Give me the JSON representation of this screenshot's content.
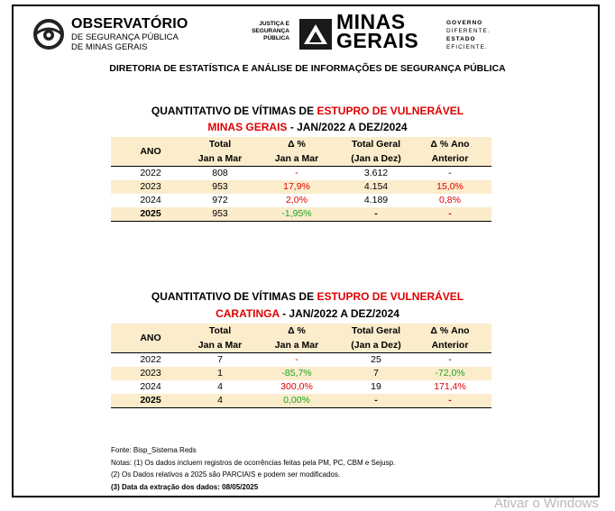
{
  "header": {
    "obs_title": "OBSERVATÓRIO",
    "obs_sub1": "DE SEGURANÇA PÚBLICA",
    "obs_sub2": "DE MINAS GERAIS",
    "just_line1": "JUSTIÇA E",
    "just_line2": "SEGURANÇA",
    "just_line3": "PÚBLICA",
    "mg_line1": "MINAS",
    "mg_line2": "GERAIS",
    "gov_line1": "GOVERNO",
    "gov_line2": "DIFERENTE.",
    "gov_line3": "ESTADO",
    "gov_line4": "EFICIENTE."
  },
  "directorate": "DIRETORIA DE ESTATÍSTICA E ANÁLISE DE INFORMAÇÕES DE SEGURANÇA PÚBLICA",
  "columns": {
    "ano": "ANO",
    "total_l1": "Total",
    "total_l2": "Jan a Mar",
    "delta_l1": "Δ %",
    "delta_l2": "Jan a Mar",
    "tg_l1": "Total Geral",
    "tg_l2": "(Jan a Dez)",
    "da_l1": "Δ % Ano",
    "da_l2": "Anterior"
  },
  "table1": {
    "title_prefix": "QUANTITATIVO DE VÍTIMAS DE ",
    "title_crime": "ESTUPRO DE VULNERÁVEL",
    "subtitle_place": "MINAS GERAIS",
    "subtitle_period": " - JAN/2022 A DEZ/2024",
    "rows": [
      {
        "ano": "2022",
        "total": "808",
        "delta": "-",
        "total_geral": "3.612",
        "delta_ano": "-"
      },
      {
        "ano": "2023",
        "total": "953",
        "delta": "17,9%",
        "total_geral": "4.154",
        "delta_ano": "15,0%"
      },
      {
        "ano": "2024",
        "total": "972",
        "delta": "2,0%",
        "total_geral": "4.189",
        "delta_ano": "0,8%"
      },
      {
        "ano": "2025",
        "total": "953",
        "delta": "-1,95%",
        "total_geral": "-",
        "delta_ano": "-"
      }
    ]
  },
  "table2": {
    "title_prefix": "QUANTITATIVO DE VÍTIMAS DE ",
    "title_crime": "ESTUPRO DE VULNERÁVEL",
    "subtitle_place": "CARATINGA",
    "subtitle_period": " - JAN/2022 A DEZ/2024",
    "rows": [
      {
        "ano": "2022",
        "total": "7",
        "delta": "-",
        "total_geral": "25",
        "delta_ano": "-"
      },
      {
        "ano": "2023",
        "total": "1",
        "delta": "-85,7%",
        "total_geral": "7",
        "delta_ano": "-72,0%"
      },
      {
        "ano": "2024",
        "total": "4",
        "delta": "300,0%",
        "total_geral": "19",
        "delta_ano": "171,4%"
      },
      {
        "ano": "2025",
        "total": "4",
        "delta": "0,00%",
        "total_geral": "-",
        "delta_ano": "-"
      }
    ]
  },
  "notes": {
    "source": "Fonte: Bisp_Sistema Reds",
    "note1": "Notas: (1) Os dados incluem registros de ocorrências feitas pela PM, PC, CBM e Sejusp.",
    "note2": "(2) Os Dados relativos a 2025 são PARCIAIS e podem ser modificados.",
    "note3": "(3) Data da extração dos dados: 08/05/2025"
  },
  "watermark": "Ativar o Windows",
  "colors": {
    "red": "#e00000",
    "green": "#1fa31f",
    "header_fill": "#fbeccc"
  }
}
